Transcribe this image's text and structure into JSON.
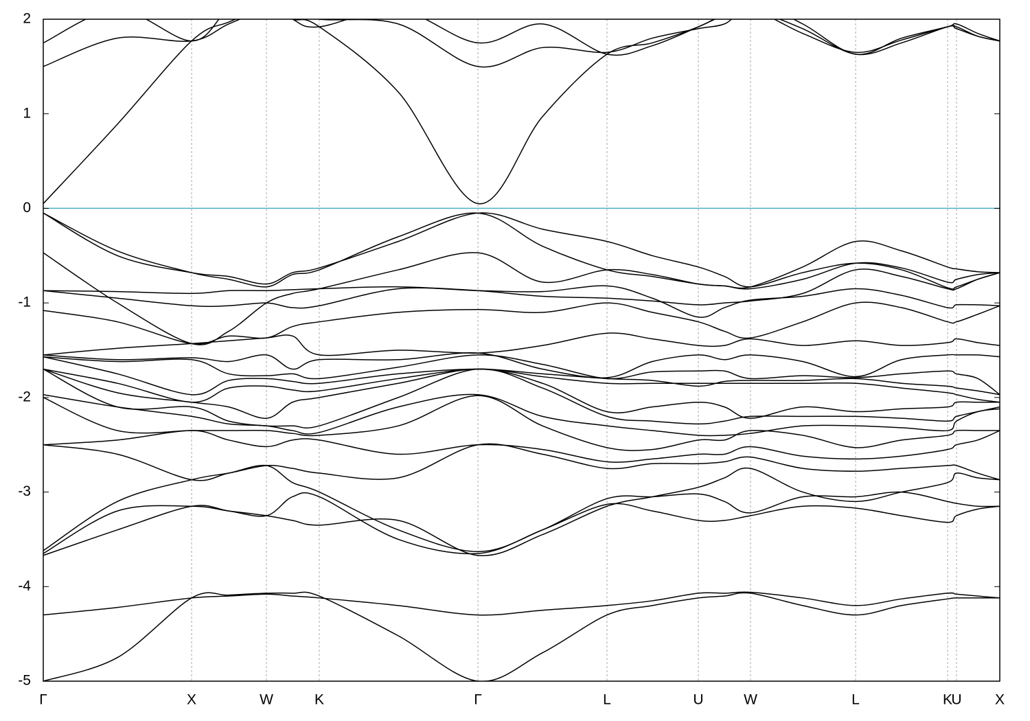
{
  "chart_data": {
    "type": "line",
    "x": [
      0,
      108,
      216,
      270,
      325,
      363,
      402,
      517,
      633,
      727,
      821,
      887,
      954,
      992,
      1030,
      1106,
      1183,
      1250,
      1317,
      1330,
      1361,
      1393
    ],
    "xlim": [
      0,
      1393
    ],
    "xticks": [
      {
        "value": 0,
        "label": "Γ"
      },
      {
        "value": 216,
        "label": "X"
      },
      {
        "value": 325,
        "label": "W"
      },
      {
        "value": 402,
        "label": "K"
      },
      {
        "value": 633,
        "label": "Γ"
      },
      {
        "value": 821,
        "label": "L"
      },
      {
        "value": 954,
        "label": "U"
      },
      {
        "value": 1030,
        "label": "W"
      },
      {
        "value": 1183,
        "label": "L"
      },
      {
        "value": 1317,
        "label": "K"
      },
      {
        "value": 1330,
        "label": "U"
      },
      {
        "value": 1393,
        "label": "X"
      }
    ],
    "ylim": [
      -5,
      2
    ],
    "yticks": [
      -5,
      -4,
      -3,
      -2,
      -1,
      0,
      1,
      2
    ],
    "xgrid": true,
    "color": "#000000",
    "hline": {
      "y": 0,
      "color": "#4ab0c8"
    },
    "series": [
      {
        "values": [
          -5,
          -4.75,
          -4.12,
          -4.09,
          -4.07,
          -4.07,
          -4.1,
          -4.52,
          -5,
          -4.7,
          -4.3,
          -4.2,
          -4.12,
          -4.1,
          -4.07,
          -4.2,
          -4.3,
          -4.2,
          -4.13,
          -4.12,
          -4.12,
          -4.12
        ]
      },
      {
        "values": [
          -4.3,
          -4.22,
          -4.12,
          -4.1,
          -4.08,
          -4.1,
          -4.12,
          -4.2,
          -4.3,
          -4.25,
          -4.2,
          -4.15,
          -4.07,
          -4.07,
          -4.06,
          -4.12,
          -4.2,
          -4.13,
          -4.07,
          -4.08,
          -4.1,
          -4.12
        ]
      },
      {
        "values": [
          -3.67,
          -3.4,
          -3.15,
          -3.2,
          -3.25,
          -3.3,
          -3.35,
          -3.3,
          -3.67,
          -3.45,
          -3.15,
          -3.05,
          -2.95,
          -2.85,
          -2.75,
          -3.0,
          -3.1,
          -3.0,
          -2.9,
          -2.8,
          -2.85,
          -2.87
        ]
      },
      {
        "values": [
          -3.65,
          -3.2,
          -3.15,
          -3.2,
          -3.25,
          -3.05,
          -3.05,
          -3.5,
          -3.65,
          -3.4,
          -3.13,
          -3.2,
          -3.3,
          -3.3,
          -3.25,
          -3.15,
          -3.17,
          -3.25,
          -3.32,
          -3.25,
          -3.18,
          -3.15
        ]
      },
      {
        "values": [
          -3.62,
          -3.1,
          -2.87,
          -2.8,
          -2.72,
          -2.9,
          -3.0,
          -3.4,
          -3.63,
          -3.4,
          -3.07,
          -3.05,
          -3.02,
          -3.1,
          -3.22,
          -3.05,
          -3.05,
          -3.0,
          -3.1,
          -3.12,
          -3.15,
          -3.15
        ]
      },
      {
        "values": [
          -2.5,
          -2.6,
          -2.87,
          -2.8,
          -2.72,
          -2.75,
          -2.8,
          -2.85,
          -2.5,
          -2.6,
          -2.75,
          -2.7,
          -2.7,
          -2.68,
          -2.63,
          -2.75,
          -2.78,
          -2.75,
          -2.72,
          -2.72,
          -2.8,
          -2.87
        ]
      },
      {
        "values": [
          -2.5,
          -2.45,
          -2.35,
          -2.45,
          -2.52,
          -2.45,
          -2.45,
          -2.6,
          -2.5,
          -2.55,
          -2.68,
          -2.65,
          -2.6,
          -2.6,
          -2.52,
          -2.62,
          -2.65,
          -2.62,
          -2.55,
          -2.5,
          -2.45,
          -2.35
        ]
      },
      {
        "values": [
          -2.0,
          -2.35,
          -2.35,
          -2.35,
          -2.35,
          -2.38,
          -2.4,
          -2.3,
          -1.98,
          -2.3,
          -2.53,
          -2.55,
          -2.45,
          -2.45,
          -2.35,
          -2.4,
          -2.53,
          -2.45,
          -2.4,
          -2.35,
          -2.35,
          -2.35
        ]
      },
      {
        "values": [
          -1.97,
          -2.1,
          -2.2,
          -2.28,
          -2.3,
          -2.35,
          -2.37,
          -2.1,
          -1.97,
          -2.2,
          -2.3,
          -2.35,
          -2.4,
          -2.4,
          -2.38,
          -2.3,
          -2.3,
          -2.32,
          -2.35,
          -2.25,
          -2.15,
          -2.12
        ]
      },
      {
        "values": [
          -1.7,
          -2.1,
          -2.1,
          -2.25,
          -2.3,
          -2.3,
          -2.3,
          -2.0,
          -1.7,
          -1.9,
          -2.2,
          -2.25,
          -2.28,
          -2.25,
          -2.2,
          -2.2,
          -2.2,
          -2.22,
          -2.25,
          -2.2,
          -2.15,
          -2.1
        ]
      },
      {
        "values": [
          -1.7,
          -1.95,
          -2.05,
          -2.1,
          -2.22,
          -2.05,
          -2.0,
          -1.85,
          -1.7,
          -1.85,
          -2.15,
          -2.1,
          -2.05,
          -2.1,
          -2.22,
          -2.1,
          -2.15,
          -2.12,
          -2.1,
          -2.05,
          -2.05,
          -2.05
        ]
      },
      {
        "values": [
          -1.7,
          -1.85,
          -2.05,
          -1.9,
          -1.88,
          -1.92,
          -1.93,
          -1.8,
          -1.7,
          -1.78,
          -1.85,
          -1.85,
          -1.85,
          -1.85,
          -1.85,
          -1.85,
          -1.85,
          -1.9,
          -1.95,
          -1.97,
          -2.02,
          -2.05
        ]
      },
      {
        "values": [
          -1.57,
          -1.75,
          -1.97,
          -1.82,
          -1.8,
          -1.83,
          -1.85,
          -1.75,
          -1.7,
          -1.75,
          -1.8,
          -1.82,
          -1.88,
          -1.83,
          -1.82,
          -1.82,
          -1.8,
          -1.85,
          -1.88,
          -1.9,
          -1.93,
          -1.97
        ]
      },
      {
        "values": [
          -1.57,
          -1.62,
          -1.6,
          -1.75,
          -1.77,
          -1.75,
          -1.8,
          -1.68,
          -1.55,
          -1.65,
          -1.8,
          -1.73,
          -1.72,
          -1.72,
          -1.8,
          -1.77,
          -1.79,
          -1.75,
          -1.72,
          -1.75,
          -1.8,
          -1.97
        ]
      },
      {
        "values": [
          -1.55,
          -1.6,
          -1.58,
          -1.62,
          -1.55,
          -1.7,
          -1.6,
          -1.6,
          -1.53,
          -1.7,
          -1.79,
          -1.62,
          -1.55,
          -1.6,
          -1.55,
          -1.62,
          -1.78,
          -1.6,
          -1.55,
          -1.55,
          -1.55,
          -1.57
        ]
      },
      {
        "values": [
          -1.55,
          -1.48,
          -1.43,
          -1.4,
          -1.37,
          -1.35,
          -1.55,
          -1.5,
          -1.53,
          -1.45,
          -1.32,
          -1.38,
          -1.45,
          -1.45,
          -1.38,
          -1.45,
          -1.4,
          -1.45,
          -1.42,
          -1.38,
          -1.42,
          -1.45
        ]
      },
      {
        "values": [
          -1.08,
          -1.2,
          -1.43,
          -1.35,
          -1.37,
          -1.25,
          -1.2,
          -1.1,
          -1.07,
          -1.1,
          -1.0,
          -1.1,
          -1.2,
          -1.3,
          -1.37,
          -1.2,
          -1.0,
          -1.05,
          -1.2,
          -1.2,
          -1.12,
          -1.03
        ]
      },
      {
        "values": [
          -0.87,
          -0.95,
          -1.03,
          -1.03,
          -1.0,
          -1.05,
          -1.03,
          -0.85,
          -0.87,
          -0.88,
          -0.82,
          -0.95,
          -1.15,
          -1.05,
          -0.97,
          -0.93,
          -0.85,
          -0.92,
          -1.05,
          -1.02,
          -1.02,
          -1.03
        ]
      },
      {
        "values": [
          -0.87,
          -0.88,
          -0.9,
          -0.87,
          -0.87,
          -0.86,
          -0.85,
          -0.83,
          -0.87,
          -0.93,
          -0.95,
          -0.98,
          -1.02,
          -1.0,
          -0.98,
          -0.9,
          -0.65,
          -0.72,
          -0.85,
          -0.85,
          -0.75,
          -0.68
        ]
      },
      {
        "values": [
          -0.47,
          -1.0,
          -1.43,
          -1.3,
          -1.0,
          -0.9,
          -0.85,
          -0.65,
          -0.47,
          -0.78,
          -0.65,
          -0.7,
          -0.8,
          -0.82,
          -0.85,
          -0.75,
          -0.58,
          -0.63,
          -0.78,
          -0.75,
          -0.7,
          -0.68
        ]
      },
      {
        "values": [
          -0.05,
          -0.45,
          -0.68,
          -0.75,
          -0.83,
          -0.7,
          -0.65,
          -0.3,
          -0.05,
          -0.4,
          -0.65,
          -0.72,
          -0.8,
          -0.82,
          -0.83,
          -0.62,
          -0.35,
          -0.45,
          -0.62,
          -0.64,
          -0.67,
          -0.68
        ]
      },
      {
        "values": [
          -0.05,
          -0.5,
          -0.68,
          -0.72,
          -0.8,
          -0.68,
          -0.63,
          -0.35,
          -0.05,
          -0.22,
          -0.35,
          -0.5,
          -0.62,
          -0.72,
          -0.83,
          -0.68,
          -0.58,
          -0.65,
          -0.84,
          -0.83,
          -0.75,
          -0.68
        ]
      },
      {
        "values": [
          0.05,
          0.89,
          1.77,
          1.97,
          2.1,
          2.0,
          1.92,
          1.23,
          0.05,
          0.97,
          1.63,
          1.75,
          1.92,
          2.05,
          2.1,
          1.9,
          1.63,
          1.75,
          1.92,
          1.9,
          1.82,
          1.77
        ]
      },
      {
        "values": [
          1.5,
          1.8,
          1.77,
          1.95,
          2.1,
          2.1,
          2.0,
          1.95,
          1.5,
          1.7,
          1.65,
          1.8,
          1.9,
          1.95,
          2.1,
          1.85,
          1.65,
          1.78,
          1.92,
          1.92,
          1.82,
          1.77
        ]
      },
      {
        "values": [
          1.75,
          2.1,
          1.77,
          2.1,
          2.2,
          2.0,
          1.92,
          2.1,
          1.75,
          1.95,
          1.63,
          1.72,
          1.92,
          2.05,
          2.2,
          1.95,
          1.63,
          1.8,
          1.92,
          1.95,
          1.85,
          1.77
        ]
      }
    ]
  }
}
